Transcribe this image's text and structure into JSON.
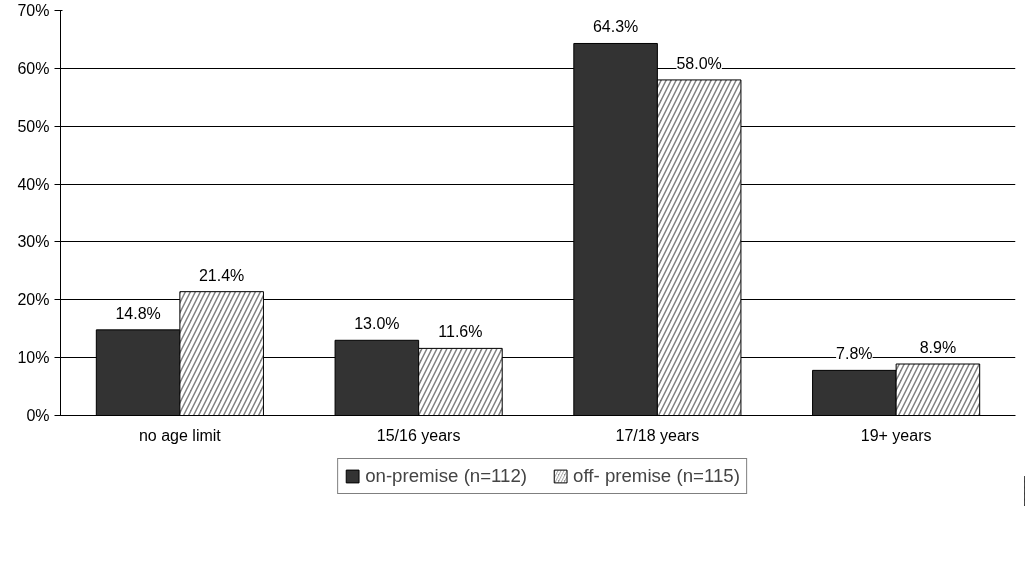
{
  "chart_data": {
    "type": "bar",
    "categories": [
      "no age limit",
      "15/16 years",
      "17/18 years",
      "19+ years"
    ],
    "series": [
      {
        "name": "on-premise (n=112)",
        "color": "#333333",
        "values": [
          14.8,
          13.0,
          64.3,
          7.8
        ],
        "value_labels": [
          "14.8%",
          "13.0%",
          "64.3%",
          "7.8%"
        ]
      },
      {
        "name": "off- premise (n=115)",
        "color": "#808080",
        "values": [
          21.4,
          11.6,
          58.0,
          8.9
        ],
        "value_labels": [
          "21.4%",
          "11.6%",
          "58.0%",
          "8.9%"
        ]
      }
    ],
    "ylim": [
      0,
      70
    ],
    "yticks": [
      {
        "value": 0,
        "label": "0%"
      },
      {
        "value": 10,
        "label": "10%"
      },
      {
        "value": 20,
        "label": "20%"
      },
      {
        "value": 30,
        "label": "30%"
      },
      {
        "value": 40,
        "label": "40%"
      },
      {
        "value": 50,
        "label": "50%"
      },
      {
        "value": 60,
        "label": "60%"
      },
      {
        "value": 70,
        "label": "70%"
      }
    ],
    "grid": "y",
    "legend": "bottom"
  }
}
